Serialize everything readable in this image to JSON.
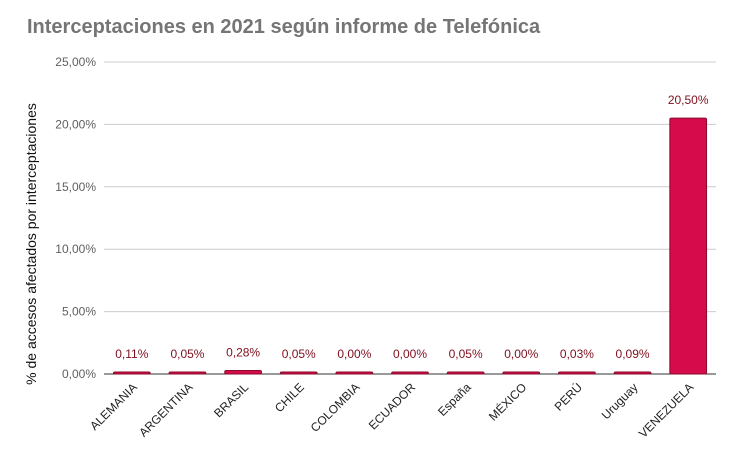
{
  "chart_data": {
    "type": "bar",
    "title": "Interceptaciones en 2021 según informe de Telefónica",
    "xlabel": "",
    "ylabel": "% de accesos afectados por interceptaciones",
    "categories": [
      "ALEMANIA",
      "ARGENTINA",
      "BRASIL",
      "CHILE",
      "COLOMBIA",
      "ECUADOR",
      "España",
      "MÉXICO",
      "PERÚ",
      "Uruguay",
      "VENEZUELA"
    ],
    "values": [
      0.11,
      0.05,
      0.28,
      0.05,
      0.0,
      0.0,
      0.05,
      0.0,
      0.03,
      0.09,
      20.5
    ],
    "data_labels": [
      "0,11%",
      "0,05%",
      "0,28%",
      "0,05%",
      "0,00%",
      "0,00%",
      "0,05%",
      "0,00%",
      "0,03%",
      "0,09%",
      "20,50%"
    ],
    "ylim": [
      0,
      25
    ],
    "yticks": [
      0,
      5,
      10,
      15,
      20,
      25
    ],
    "ytick_labels": [
      "0,00%",
      "5,00%",
      "10,00%",
      "15,00%",
      "20,00%",
      "25,00%"
    ],
    "grid": true,
    "legend": "none",
    "colors": {
      "bar": "#d50b4b",
      "bar_edge": "#8a0a2a",
      "grid": "#cccccc",
      "data_label": "#7f0f1e",
      "title": "#757575"
    }
  }
}
